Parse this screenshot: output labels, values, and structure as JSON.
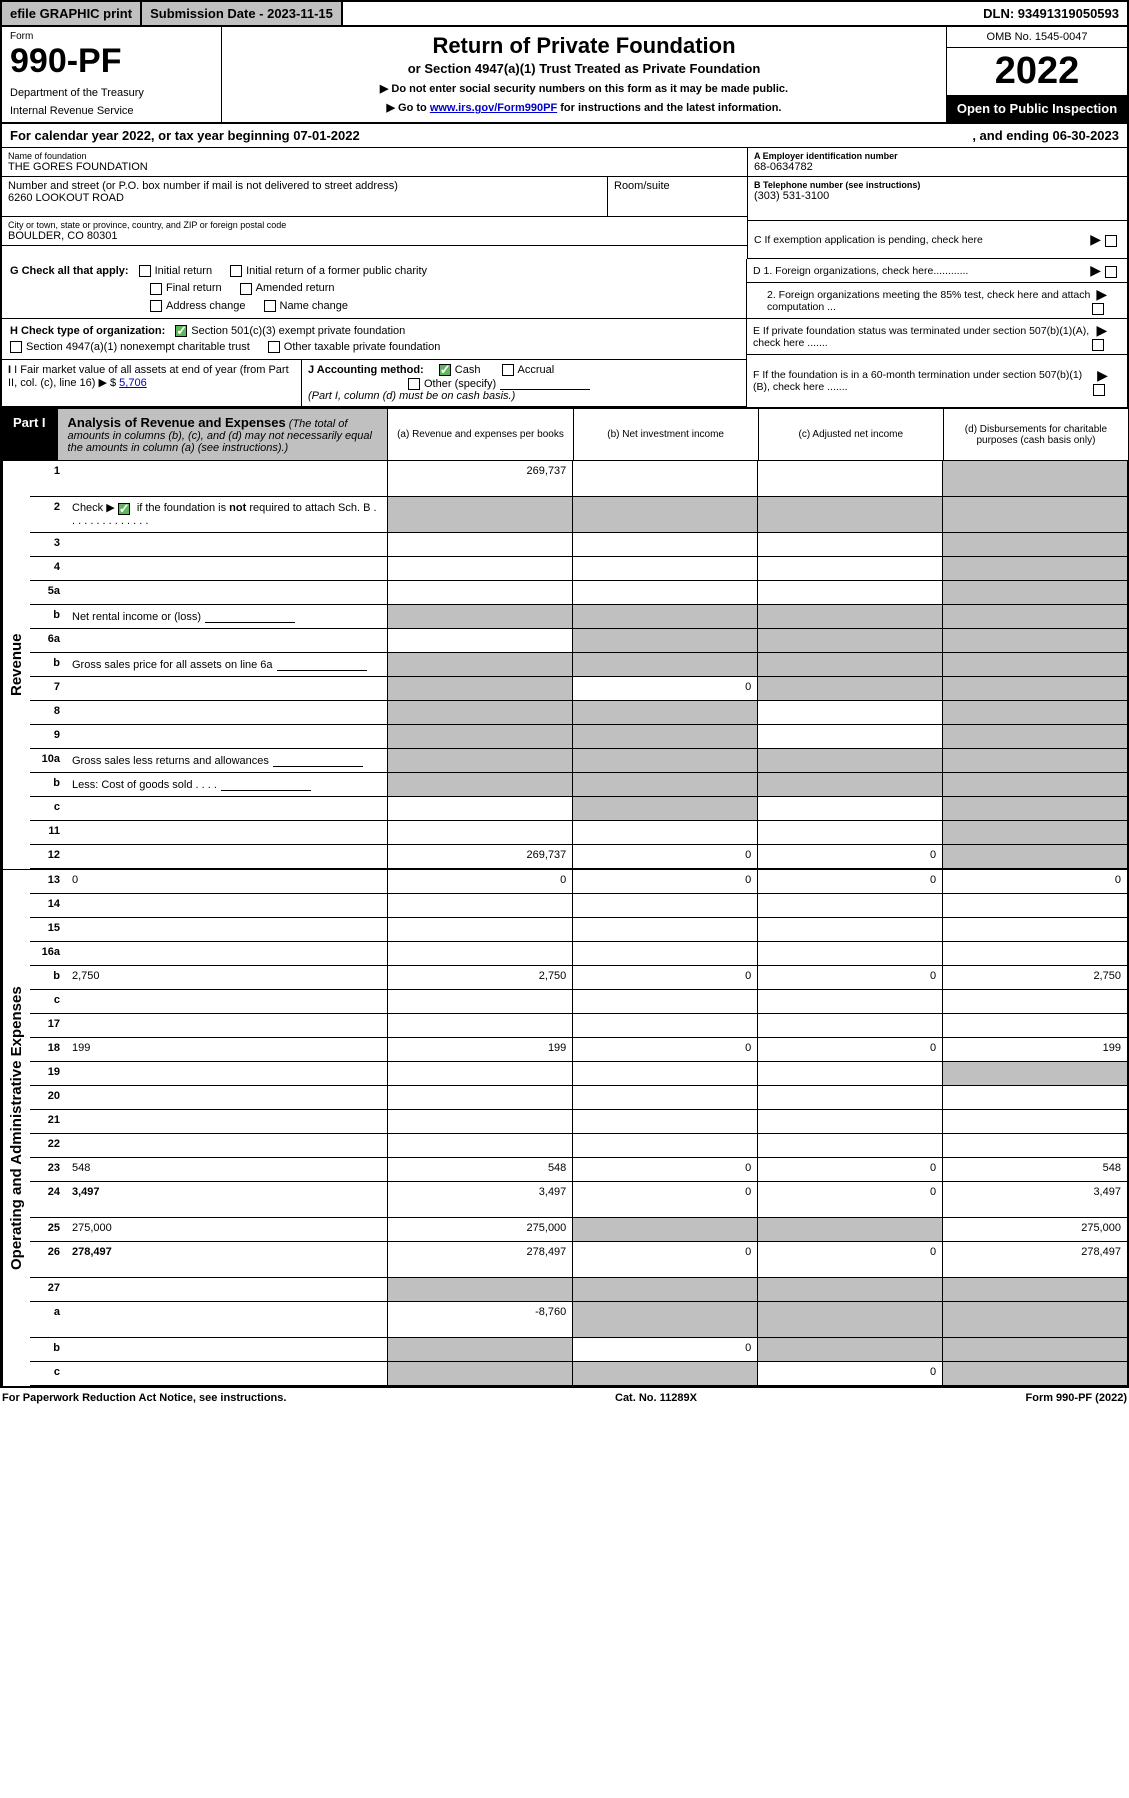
{
  "top_bar": {
    "efile": "efile GRAPHIC print",
    "submission": "Submission Date - 2023-11-15",
    "dln": "DLN: 93491319050593"
  },
  "header": {
    "form_label": "Form",
    "form_number": "990-PF",
    "dept1": "Department of the Treasury",
    "dept2": "Internal Revenue Service",
    "title": "Return of Private Foundation",
    "subtitle": "or Section 4947(a)(1) Trust Treated as Private Foundation",
    "note1": "▶ Do not enter social security numbers on this form as it may be made public.",
    "note2_pre": "▶ Go to ",
    "note2_link": "www.irs.gov/Form990PF",
    "note2_post": " for instructions and the latest information.",
    "omb": "OMB No. 1545-0047",
    "year": "2022",
    "open": "Open to Public Inspection"
  },
  "cal_year": {
    "text": "For calendar year 2022, or tax year beginning 07-01-2022",
    "ending": ", and ending 06-30-2023"
  },
  "entity": {
    "name_label": "Name of foundation",
    "name": "THE GORES FOUNDATION",
    "addr_label": "Number and street (or P.O. box number if mail is not delivered to street address)",
    "addr": "6260 LOOKOUT ROAD",
    "room_label": "Room/suite",
    "city_label": "City or town, state or province, country, and ZIP or foreign postal code",
    "city": "BOULDER, CO  80301",
    "ein_label": "A Employer identification number",
    "ein": "68-0634782",
    "phone_label": "B Telephone number (see instructions)",
    "phone": "(303) 531-3100",
    "c_label": "C If exemption application is pending, check here",
    "d1": "D 1. Foreign organizations, check here............",
    "d2": "2. Foreign organizations meeting the 85% test, check here and attach computation ...",
    "e_label": "E  If private foundation status was terminated under section 507(b)(1)(A), check here .......",
    "f_label": "F  If the foundation is in a 60-month termination under section 507(b)(1)(B), check here .......",
    "g_label": "G Check all that apply:",
    "g_items": [
      "Initial return",
      "Initial return of a former public charity",
      "Final return",
      "Amended return",
      "Address change",
      "Name change"
    ],
    "h_label": "H Check type of organization:",
    "h_items": [
      "Section 501(c)(3) exempt private foundation",
      "Section 4947(a)(1) nonexempt charitable trust",
      "Other taxable private foundation"
    ],
    "i_label": "I Fair market value of all assets at end of year (from Part II, col. (c), line 16) ▶ $",
    "i_value": "5,706",
    "j_label": "J Accounting method:",
    "j_cash": "Cash",
    "j_accrual": "Accrual",
    "j_other": "Other (specify)",
    "j_note": "(Part I, column (d) must be on cash basis.)"
  },
  "part1": {
    "tab": "Part I",
    "title_bold": "Analysis of Revenue and Expenses",
    "title_rest": " (The total of amounts in columns (b), (c), and (d) may not necessarily equal the amounts in column (a) (see instructions).)",
    "col_a": "(a)   Revenue and expenses per books",
    "col_b": "(b)   Net investment income",
    "col_c": "(c)   Adjusted net income",
    "col_d": "(d)   Disbursements for charitable purposes (cash basis only)"
  },
  "side_rev": "Revenue",
  "side_exp": "Operating and Administrative Expenses",
  "rows_rev": [
    {
      "n": "1",
      "d": "",
      "a": "269,737",
      "b": "",
      "c": "",
      "grey_d": true,
      "tall": true
    },
    {
      "n": "2",
      "d": "Check ▶ ☑ if the foundation is not required to attach Sch. B",
      "nocells": true,
      "tall": true,
      "checkgreen": true
    },
    {
      "n": "3",
      "d": "",
      "a": "",
      "b": "",
      "c": "",
      "grey_d": true
    },
    {
      "n": "4",
      "d": "",
      "a": "",
      "b": "",
      "c": "",
      "grey_d": true
    },
    {
      "n": "5a",
      "d": "",
      "a": "",
      "b": "",
      "c": "",
      "grey_d": true
    },
    {
      "n": "b",
      "d": "Net rental income or (loss)",
      "sub": true,
      "nocells": true
    },
    {
      "n": "6a",
      "d": "",
      "a": "",
      "b": "",
      "c": "",
      "grey_bcd": true
    },
    {
      "n": "b",
      "d": "Gross sales price for all assets on line 6a",
      "sub": true,
      "nocells": true
    },
    {
      "n": "7",
      "d": "",
      "a": "",
      "b": "0",
      "c": "",
      "grey_acd": true
    },
    {
      "n": "8",
      "d": "",
      "a": "",
      "b": "",
      "c": "",
      "grey_abd": true
    },
    {
      "n": "9",
      "d": "",
      "a": "",
      "b": "",
      "c": "",
      "grey_abd": true
    },
    {
      "n": "10a",
      "d": "Gross sales less returns and allowances",
      "sub": true,
      "nocells": true
    },
    {
      "n": "b",
      "d": "Less: Cost of goods sold   .   .   .   .",
      "sub": true,
      "nocells": true
    },
    {
      "n": "c",
      "d": "",
      "a": "",
      "b": "",
      "c": "",
      "grey_bd": true
    },
    {
      "n": "11",
      "d": "",
      "a": "",
      "b": "",
      "c": "",
      "grey_d": true
    },
    {
      "n": "12",
      "d": "",
      "bold": true,
      "a": "269,737",
      "b": "0",
      "c": "0",
      "grey_d": true
    }
  ],
  "rows_exp": [
    {
      "n": "13",
      "d": "0",
      "a": "0",
      "b": "0",
      "c": "0"
    },
    {
      "n": "14",
      "d": "",
      "a": "",
      "b": "",
      "c": ""
    },
    {
      "n": "15",
      "d": "",
      "a": "",
      "b": "",
      "c": ""
    },
    {
      "n": "16a",
      "d": "",
      "a": "",
      "b": "",
      "c": ""
    },
    {
      "n": "b",
      "d": "2,750",
      "a": "2,750",
      "b": "0",
      "c": "0"
    },
    {
      "n": "c",
      "d": "",
      "a": "",
      "b": "",
      "c": ""
    },
    {
      "n": "17",
      "d": "",
      "a": "",
      "b": "",
      "c": ""
    },
    {
      "n": "18",
      "d": "199",
      "a": "199",
      "b": "0",
      "c": "0"
    },
    {
      "n": "19",
      "d": "",
      "a": "",
      "b": "",
      "c": "",
      "grey_d": true
    },
    {
      "n": "20",
      "d": "",
      "a": "",
      "b": "",
      "c": ""
    },
    {
      "n": "21",
      "d": "",
      "a": "",
      "b": "",
      "c": ""
    },
    {
      "n": "22",
      "d": "",
      "a": "",
      "b": "",
      "c": ""
    },
    {
      "n": "23",
      "d": "548",
      "a": "548",
      "b": "0",
      "c": "0"
    },
    {
      "n": "24",
      "d": "3,497",
      "bold": true,
      "a": "3,497",
      "b": "0",
      "c": "0",
      "tall": true
    },
    {
      "n": "25",
      "d": "275,000",
      "a": "275,000",
      "b": "",
      "c": "",
      "grey_bc": true
    },
    {
      "n": "26",
      "d": "278,497",
      "bold": true,
      "a": "278,497",
      "b": "0",
      "c": "0",
      "tall": true
    },
    {
      "n": "27",
      "d": "",
      "a": "",
      "b": "",
      "c": "",
      "grey_all": true
    },
    {
      "n": "a",
      "d": "",
      "bold": true,
      "a": "-8,760",
      "b": "",
      "c": "",
      "grey_bcd": true,
      "tall": true
    },
    {
      "n": "b",
      "d": "",
      "bold": true,
      "a": "",
      "b": "0",
      "c": "",
      "grey_acd": true
    },
    {
      "n": "c",
      "d": "",
      "bold": true,
      "a": "",
      "b": "",
      "c": "0",
      "grey_abd": true
    }
  ],
  "footer": {
    "left": "For Paperwork Reduction Act Notice, see instructions.",
    "mid": "Cat. No. 11289X",
    "right": "Form 990-PF (2022)"
  },
  "colors": {
    "grey": "#c0c0c0",
    "green": "#5eb85e",
    "link": "#0000cc"
  }
}
